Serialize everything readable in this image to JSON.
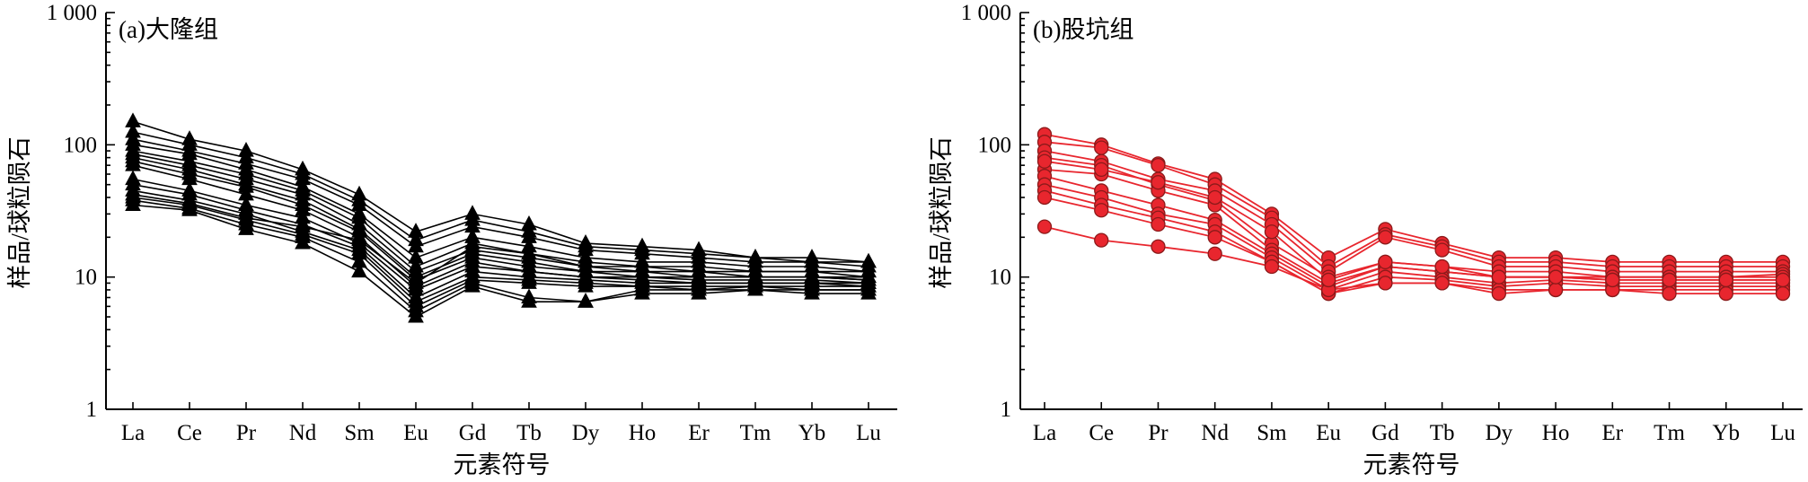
{
  "chart_data": [
    {
      "type": "line",
      "title": "(a)大隆组",
      "xlabel": "元素符号",
      "ylabel": "样品/球粒陨石",
      "categories": [
        "La",
        "Ce",
        "Pr",
        "Nd",
        "Sm",
        "Eu",
        "Gd",
        "Tb",
        "Dy",
        "Ho",
        "Er",
        "Tm",
        "Yb",
        "Lu"
      ],
      "yscale": "log",
      "ylim": [
        1,
        1000
      ],
      "yticks": [
        {
          "value": 1,
          "label": "1"
        },
        {
          "value": 10,
          "label": "10"
        },
        {
          "value": 100,
          "label": "100"
        },
        {
          "value": 1000,
          "label": "1 000"
        }
      ],
      "grid": false,
      "marker": "triangle",
      "color": "#000000",
      "series": [
        {
          "values": [
            150,
            110,
            90,
            65,
            42,
            22,
            30,
            25,
            18,
            17,
            16,
            14,
            14,
            13
          ]
        },
        {
          "values": [
            125,
            100,
            80,
            60,
            38,
            19,
            27,
            22,
            17,
            16,
            15,
            14,
            13,
            13
          ]
        },
        {
          "values": [
            110,
            90,
            72,
            55,
            35,
            17,
            24,
            20,
            16,
            15,
            14,
            13,
            13,
            12
          ]
        },
        {
          "values": [
            100,
            85,
            65,
            48,
            30,
            14,
            20,
            17,
            14,
            13,
            13,
            12,
            12,
            11
          ]
        },
        {
          "values": [
            90,
            75,
            60,
            45,
            28,
            12,
            18,
            15,
            13,
            12,
            12,
            11,
            11,
            11
          ]
        },
        {
          "values": [
            85,
            70,
            55,
            42,
            25,
            11,
            16,
            14,
            12,
            12,
            11,
            11,
            11,
            10
          ]
        },
        {
          "values": [
            80,
            65,
            50,
            38,
            23,
            10,
            15,
            13,
            11,
            11,
            11,
            10,
            10,
            10
          ]
        },
        {
          "values": [
            75,
            60,
            48,
            35,
            22,
            9.5,
            14,
            12,
            11,
            10,
            10,
            10,
            10,
            9.5
          ]
        },
        {
          "values": [
            70,
            55,
            42,
            32,
            20,
            8.5,
            13,
            11,
            10,
            10,
            9.5,
            9.5,
            9.5,
            9
          ]
        },
        {
          "values": [
            55,
            45,
            35,
            28,
            18,
            8,
            12,
            11,
            10,
            9.5,
            9,
            9,
            9,
            9
          ]
        },
        {
          "values": [
            50,
            42,
            32,
            25,
            17,
            7,
            11,
            10,
            9.5,
            9,
            9,
            9,
            9,
            8.5
          ]
        },
        {
          "values": [
            45,
            38,
            30,
            22,
            16,
            6.5,
            10,
            9.5,
            9,
            8.5,
            8.5,
            8.5,
            8.5,
            8.5
          ]
        },
        {
          "values": [
            40,
            35,
            27,
            21,
            15,
            6,
            9.5,
            9,
            8.5,
            8.5,
            8,
            8.5,
            8,
            8
          ]
        },
        {
          "values": [
            38,
            33,
            25,
            20,
            13,
            5.5,
            9,
            7,
            6.5,
            8,
            8,
            8,
            8,
            8
          ]
        },
        {
          "values": [
            35,
            32,
            23,
            18,
            11,
            5,
            8.5,
            6.5,
            6.5,
            7.5,
            7.5,
            8,
            7.5,
            7.5
          ]
        },
        {
          "values": [
            42,
            36,
            28,
            24,
            19,
            9,
            17,
            15,
            12,
            11,
            10,
            10,
            10,
            9.5
          ]
        }
      ]
    },
    {
      "type": "line",
      "title": "(b)股坑组",
      "xlabel": "元素符号",
      "ylabel": "样品/球粒陨石",
      "categories": [
        "La",
        "Ce",
        "Pr",
        "Nd",
        "Sm",
        "Eu",
        "Gd",
        "Tb",
        "Dy",
        "Ho",
        "Er",
        "Tm",
        "Yb",
        "Lu"
      ],
      "yscale": "log",
      "ylim": [
        1,
        1000
      ],
      "yticks": [
        {
          "value": 1,
          "label": "1"
        },
        {
          "value": 10,
          "label": "10"
        },
        {
          "value": 100,
          "label": "100"
        },
        {
          "value": 1000,
          "label": "1 000"
        }
      ],
      "grid": false,
      "marker": "circle",
      "color": "#e8262e",
      "series": [
        {
          "values": [
            120,
            100,
            72,
            55,
            30,
            14,
            23,
            18,
            14,
            14,
            13,
            13,
            13,
            13
          ]
        },
        {
          "values": [
            105,
            95,
            70,
            50,
            28,
            12,
            21,
            17,
            13,
            13,
            12,
            12,
            12,
            12
          ]
        },
        {
          "values": [
            90,
            75,
            55,
            45,
            25,
            11,
            20,
            16,
            12,
            12,
            11,
            11,
            11,
            11
          ]
        },
        {
          "values": [
            80,
            70,
            50,
            38,
            18,
            10,
            13,
            12,
            11,
            11,
            10,
            10,
            10,
            10.5
          ]
        },
        {
          "values": [
            65,
            60,
            45,
            35,
            16,
            9,
            12,
            11,
            10,
            10,
            10,
            10,
            10,
            10
          ]
        },
        {
          "values": [
            58,
            45,
            35,
            27,
            15,
            8.5,
            12,
            11,
            10,
            10,
            9.5,
            9.5,
            9.5,
            9.5
          ]
        },
        {
          "values": [
            50,
            40,
            30,
            25,
            14,
            8,
            11,
            10,
            9,
            9.5,
            9,
            9,
            9,
            9
          ]
        },
        {
          "values": [
            45,
            35,
            28,
            22,
            13,
            7.5,
            10,
            9.5,
            8.5,
            9,
            8.5,
            8.5,
            8.5,
            8.5
          ]
        },
        {
          "values": [
            40,
            32,
            25,
            20,
            13,
            7.5,
            9,
            9,
            8,
            8,
            8,
            8,
            8,
            8
          ]
        },
        {
          "values": [
            24,
            19,
            17,
            15,
            12,
            8,
            9,
            9,
            7.5,
            8,
            8,
            7.5,
            7.5,
            7.5
          ]
        },
        {
          "values": [
            75,
            65,
            52,
            40,
            22,
            9.5,
            13,
            12,
            10,
            10,
            9.5,
            9.5,
            9.5,
            9.5
          ]
        }
      ]
    }
  ]
}
